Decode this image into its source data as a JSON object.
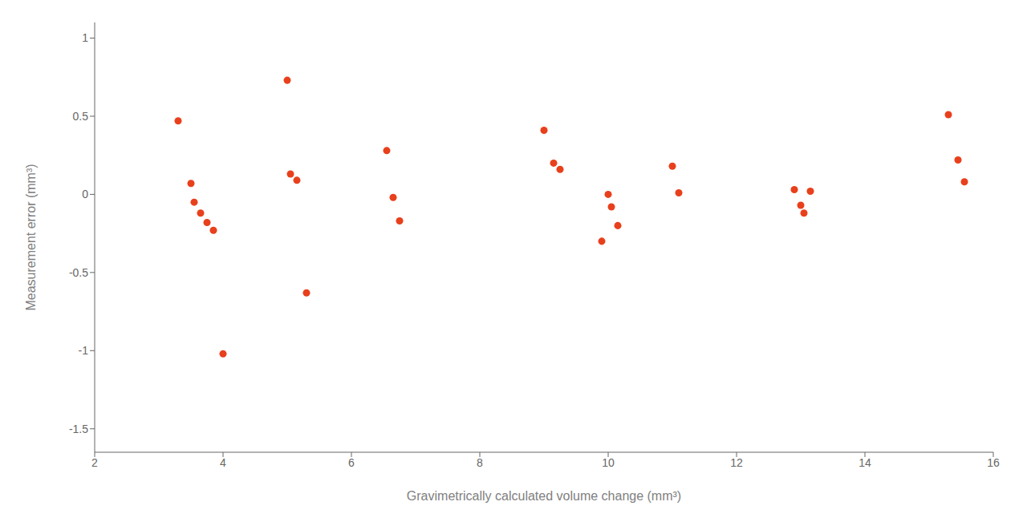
{
  "chart_data": {
    "type": "scatter",
    "x": [
      3.3,
      3.5,
      3.55,
      3.65,
      3.75,
      3.85,
      4.0,
      5.0,
      5.05,
      5.15,
      5.3,
      6.55,
      6.65,
      6.75,
      9.0,
      9.15,
      9.25,
      9.9,
      10.0,
      10.05,
      10.15,
      11.0,
      11.1,
      12.9,
      13.0,
      13.05,
      13.15,
      15.3,
      15.45,
      15.55
    ],
    "values": [
      0.47,
      0.07,
      -0.05,
      -0.12,
      -0.18,
      -0.23,
      -1.02,
      0.73,
      0.13,
      0.09,
      -0.63,
      0.28,
      -0.02,
      -0.17,
      0.41,
      0.2,
      0.16,
      -0.3,
      0.0,
      -0.08,
      -0.2,
      0.18,
      0.01,
      0.03,
      -0.07,
      -0.12,
      0.02,
      0.51,
      0.22,
      0.08
    ],
    "color": "#e8401c",
    "xlabel": "Gravimetrically calculated volume change (mm³)",
    "ylabel": "Measurement error (mm³)",
    "xlim": [
      2,
      16
    ],
    "ylim": [
      -1.65,
      1.1
    ],
    "xticks": [
      2,
      4,
      6,
      8,
      10,
      12,
      14,
      16
    ],
    "yticks": [
      -1.5,
      -1,
      -0.5,
      0,
      0.5,
      1
    ],
    "grid": false
  }
}
